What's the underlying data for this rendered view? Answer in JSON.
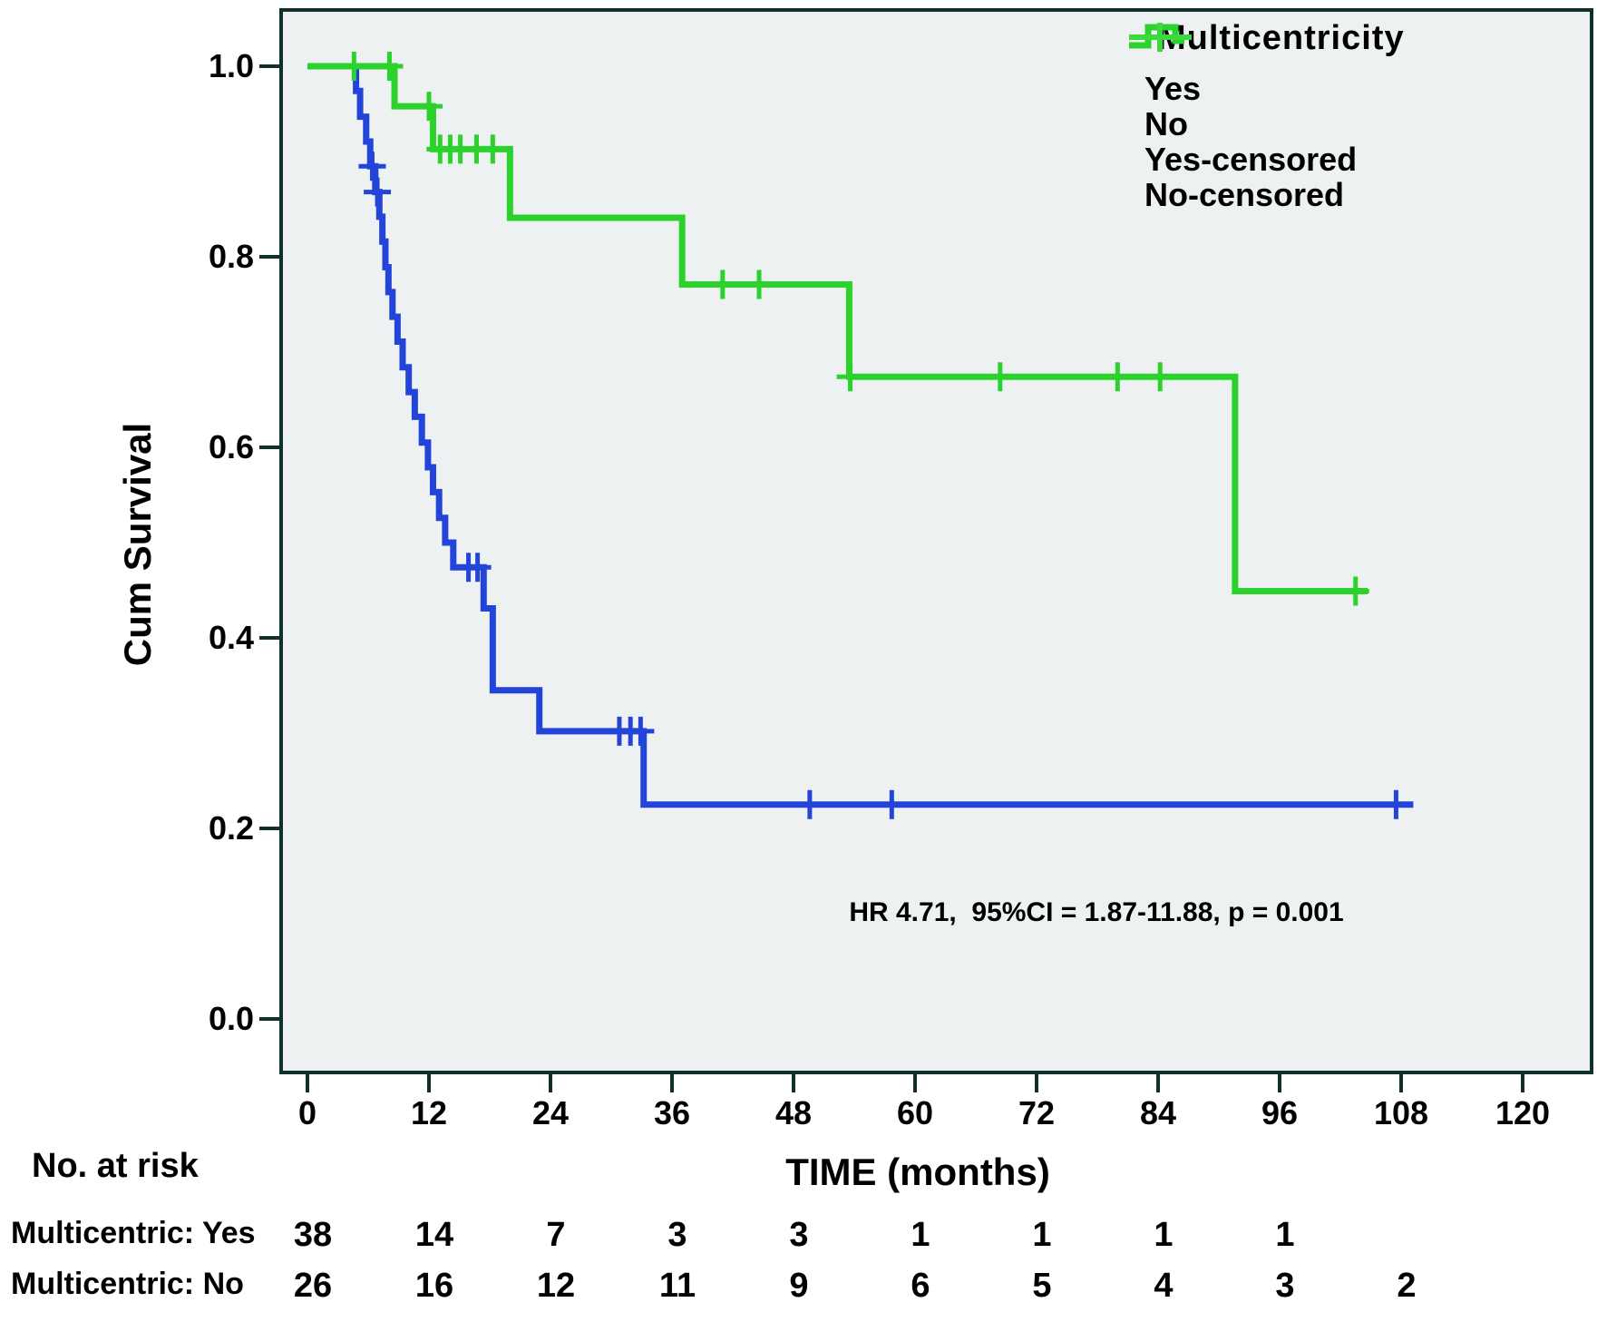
{
  "figure": {
    "y_axis": {
      "label": "Cum Survival",
      "ticks": [
        "1.0",
        "0.8",
        "0.6",
        "0.4",
        "0.2",
        "0.0"
      ]
    },
    "x_axis": {
      "label": "TIME (months)",
      "ticks": [
        0,
        12,
        24,
        36,
        48,
        60,
        72,
        84,
        96,
        108,
        120
      ]
    },
    "annotation": "HR 4.71,  95%CI = 1.87-11.88, p = 0.001",
    "legend": {
      "title": "Multicentricity",
      "entries": [
        {
          "label": "Yes",
          "type": "line",
          "color": "#2344d8"
        },
        {
          "label": "No",
          "type": "line",
          "color": "#2bd22b"
        },
        {
          "label": "Yes-censored",
          "type": "censor",
          "color": "#6e8ce8"
        },
        {
          "label": "No-censored",
          "type": "censor",
          "color": "#3bd93b"
        }
      ]
    },
    "colors": {
      "plot_background": "#edf1f1",
      "frame": "#10302d",
      "yes_curve": "#2344d8",
      "no_curve": "#2bd22b"
    }
  },
  "chart_data": {
    "type": "line",
    "subtype": "kaplan-meier-step",
    "title": "",
    "xlabel": "TIME (months)",
    "ylabel": "Cum Survival",
    "xlim": [
      0,
      120
    ],
    "ylim": [
      0.0,
      1.0
    ],
    "x_ticks": [
      0,
      12,
      24,
      36,
      48,
      60,
      72,
      84,
      96,
      108,
      120
    ],
    "y_ticks": [
      0.0,
      0.2,
      0.4,
      0.6,
      0.8,
      1.0
    ],
    "grid": false,
    "legend_position": "top-right",
    "annotation": "HR 4.71,  95%CI = 1.87-11.88, p = 0.001",
    "series": [
      {
        "name": "Yes",
        "color": "#2344d8",
        "end_time": 109.2,
        "steps": [
          [
            0,
            1.0
          ],
          [
            4.8,
            0.974
          ],
          [
            5.2,
            0.947
          ],
          [
            5.8,
            0.921
          ],
          [
            6.2,
            0.895
          ],
          [
            6.7,
            0.868
          ],
          [
            7.1,
            0.842
          ],
          [
            7.4,
            0.816
          ],
          [
            7.7,
            0.789
          ],
          [
            8.0,
            0.763
          ],
          [
            8.4,
            0.737
          ],
          [
            8.9,
            0.711
          ],
          [
            9.4,
            0.684
          ],
          [
            10.0,
            0.658
          ],
          [
            10.6,
            0.632
          ],
          [
            11.3,
            0.605
          ],
          [
            11.9,
            0.579
          ],
          [
            12.4,
            0.553
          ],
          [
            13.0,
            0.526
          ],
          [
            13.6,
            0.5
          ],
          [
            14.4,
            0.474
          ],
          [
            17.4,
            0.431
          ],
          [
            18.3,
            0.345
          ],
          [
            22.9,
            0.302
          ],
          [
            33.2,
            0.225
          ]
        ],
        "censored": [
          [
            6.4,
            0.895
          ],
          [
            6.9,
            0.868
          ],
          [
            15.9,
            0.474
          ],
          [
            16.8,
            0.474
          ],
          [
            30.8,
            0.302
          ],
          [
            31.9,
            0.302
          ],
          [
            32.9,
            0.302
          ],
          [
            49.6,
            0.225
          ],
          [
            57.7,
            0.225
          ],
          [
            107.5,
            0.225
          ]
        ]
      },
      {
        "name": "No",
        "color": "#2bd22b",
        "end_time": 104.7,
        "steps": [
          [
            0,
            1.0
          ],
          [
            8.6,
            0.958
          ],
          [
            12.4,
            0.913
          ],
          [
            20.0,
            0.841
          ],
          [
            37.0,
            0.771
          ],
          [
            53.5,
            0.674
          ],
          [
            91.6,
            0.449
          ]
        ],
        "censored": [
          [
            4.6,
            1.0
          ],
          [
            8.1,
            1.0
          ],
          [
            12.0,
            0.958
          ],
          [
            13.1,
            0.913
          ],
          [
            14.1,
            0.913
          ],
          [
            15.1,
            0.913
          ],
          [
            16.7,
            0.913
          ],
          [
            18.3,
            0.913
          ],
          [
            41.0,
            0.771
          ],
          [
            44.6,
            0.771
          ],
          [
            53.6,
            0.674
          ],
          [
            68.4,
            0.674
          ],
          [
            80.0,
            0.674
          ],
          [
            84.2,
            0.674
          ],
          [
            103.5,
            0.449
          ]
        ]
      }
    ]
  },
  "risk_table": {
    "header": "No. at risk",
    "time_points": [
      0,
      12,
      24,
      36,
      48,
      60,
      72,
      84,
      96,
      108
    ],
    "rows": [
      {
        "label": "Multicentric: Yes",
        "values": [
          "38",
          "14",
          "7",
          "3",
          "3",
          "1",
          "1",
          "1",
          "1"
        ]
      },
      {
        "label": "Multicentric: No",
        "values": [
          "26",
          "16",
          "12",
          "11",
          "9",
          "6",
          "5",
          "4",
          "3",
          "2"
        ]
      }
    ]
  }
}
